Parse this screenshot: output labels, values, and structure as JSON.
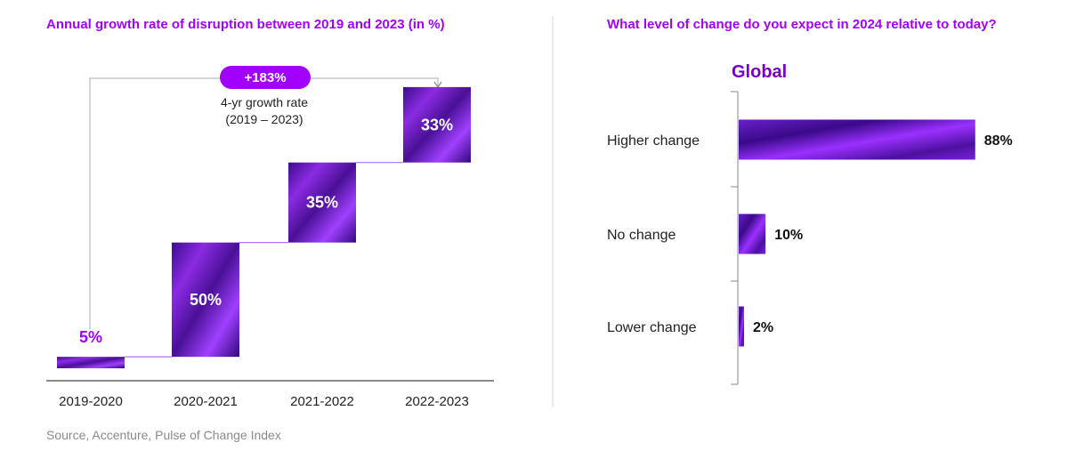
{
  "chart_data": [
    {
      "type": "bar",
      "title": "Annual growth rate of disruption between 2019 and 2023 (in %)",
      "categories": [
        "2019-2020",
        "2020-2021",
        "2021-2022",
        "2022-2023"
      ],
      "values": [
        5,
        50,
        35,
        33
      ],
      "value_labels": [
        "5%",
        "50%",
        "35%",
        "33%"
      ],
      "style": "waterfall",
      "annotation": {
        "badge": "+183%",
        "line1": "4-yr growth rate",
        "line2": "(2019 – 2023)"
      }
    },
    {
      "type": "bar",
      "orientation": "horizontal",
      "title": "What level of change do you expect in 2024 relative to today?",
      "subtitle": "Global",
      "categories": [
        "Higher change",
        "No change",
        "Lower change"
      ],
      "values": [
        88,
        10,
        2
      ],
      "value_labels": [
        "88%",
        "10%",
        "2%"
      ],
      "xlim": [
        0,
        100
      ]
    }
  ],
  "source": "Source, Accenture, Pulse of Change Index",
  "colors": {
    "accent": "#a100ff",
    "bar_dark": "#3a0a8a",
    "bar_light": "#9b30ff",
    "text": "#222222",
    "muted": "#8a8a8a",
    "divider": "#d9d9d9"
  }
}
